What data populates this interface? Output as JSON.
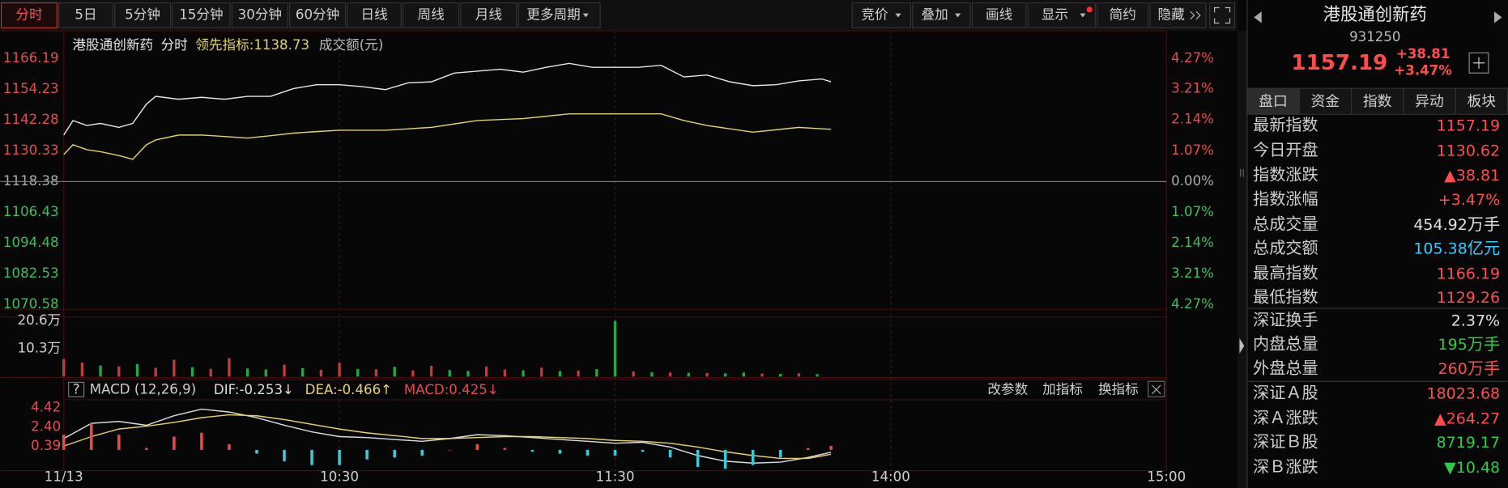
{
  "toolbar": {
    "periods": [
      "分时",
      "5日",
      "5分钟",
      "15分钟",
      "30分钟",
      "60分钟",
      "日线",
      "周线",
      "月线",
      "更多周期"
    ],
    "active": 0,
    "tools": [
      "竞价",
      "叠加",
      "画线",
      "显示",
      "简约",
      "隐藏"
    ]
  },
  "chart_data": [
    {
      "type": "line",
      "name": "港股通创新药",
      "mode": "分时",
      "indicator": {
        "label": "领先指标:",
        "value": 1138.73
      },
      "unit_note": "成交额(元)",
      "xlim": [
        0,
        240
      ],
      "x": [
        0,
        2,
        5,
        8,
        12,
        15,
        18,
        20,
        25,
        30,
        35,
        40,
        45,
        50,
        55,
        60,
        65,
        70,
        75,
        80,
        85,
        90,
        95,
        100,
        105,
        110,
        115,
        120,
        125,
        130,
        135,
        140,
        145,
        150,
        155,
        160,
        165,
        167
      ],
      "series": [
        {
          "name": "港股通创新药",
          "color": "#e6e6e6",
          "values": [
            1136.45,
            1142.1,
            1140.21,
            1140.97,
            1139.46,
            1140.97,
            1148.5,
            1151.51,
            1150.38,
            1151.13,
            1150.38,
            1151.51,
            1151.51,
            1154.52,
            1156.03,
            1156.03,
            1155.27,
            1154.14,
            1156.78,
            1157.16,
            1160.54,
            1161.3,
            1162.05,
            1160.92,
            1162.8,
            1164.31,
            1162.8,
            1162.8,
            1162.8,
            1163.56,
            1159.04,
            1159.79,
            1157.16,
            1155.65,
            1156.03,
            1157.53,
            1158.28,
            1157.19
          ]
        },
        {
          "name": "领先指标:",
          "color": "#e0d36a",
          "values": [
            1128.92,
            1132.69,
            1130.8,
            1130.0,
            1128.5,
            1127.04,
            1132.69,
            1134.57,
            1136.45,
            1136.45,
            1135.9,
            1135.32,
            1136.2,
            1137.2,
            1137.8,
            1138.33,
            1138.33,
            1138.33,
            1138.9,
            1139.46,
            1140.8,
            1142.1,
            1142.5,
            1142.85,
            1143.8,
            1144.73,
            1144.73,
            1144.73,
            1144.73,
            1144.73,
            1142.1,
            1140.21,
            1138.9,
            1137.58,
            1138.5,
            1139.46,
            1138.9,
            1138.73
          ]
        }
      ],
      "ylim": [
        1070.58,
        1166.19
      ],
      "yticks": [
        1166.19,
        1154.23,
        1142.28,
        1130.33,
        1118.38,
        1106.43,
        1094.48,
        1082.53,
        1070.58
      ],
      "y2lim": [
        -4.27,
        4.27
      ],
      "y2ticks": [
        {
          "value": 4.27,
          "label": "4.27%"
        },
        {
          "value": 3.21,
          "label": "3.21%"
        },
        {
          "value": 2.14,
          "label": "2.14%"
        },
        {
          "value": 1.07,
          "label": "1.07%"
        },
        {
          "value": 0,
          "label": "0.00%"
        },
        {
          "value": -1.07,
          "label": "1.07%"
        },
        {
          "value": -2.14,
          "label": "2.14%"
        },
        {
          "value": -3.21,
          "label": "3.21%"
        },
        {
          "value": -4.27,
          "label": "4.27%"
        }
      ],
      "up_color": "#e84a4a",
      "down_color": "#3bbf5b",
      "flat_color": "#aaaaaa"
    },
    {
      "type": "bar",
      "xlim": [
        0,
        240
      ],
      "x": [
        0,
        4,
        8,
        12,
        16,
        20,
        24,
        28,
        32,
        36,
        40,
        44,
        48,
        52,
        56,
        60,
        64,
        68,
        72,
        76,
        80,
        84,
        88,
        92,
        96,
        100,
        104,
        108,
        112,
        116,
        120,
        124,
        128,
        132,
        136,
        140,
        144,
        148,
        152,
        156,
        160,
        164
      ],
      "values": [
        6.5,
        5.2,
        4.1,
        3.8,
        4.6,
        3.2,
        6.2,
        3.4,
        2.9,
        6.8,
        3.0,
        2.6,
        4.4,
        3.1,
        2.5,
        5.1,
        2.8,
        2.7,
        3.6,
        2.3,
        4.0,
        2.4,
        2.1,
        3.7,
        2.6,
        2.3,
        3.3,
        2.0,
        2.2,
        2.8,
        20.6,
        1.9,
        1.6,
        1.5,
        1.4,
        1.3,
        1.2,
        1.5,
        1.1,
        1.0,
        1.2,
        0.9
      ],
      "up": [
        true,
        true,
        false,
        true,
        false,
        true,
        true,
        false,
        true,
        true,
        false,
        false,
        true,
        false,
        true,
        true,
        false,
        true,
        false,
        true,
        true,
        false,
        false,
        true,
        true,
        false,
        true,
        false,
        true,
        false,
        false,
        true,
        false,
        true,
        false,
        true,
        false,
        false,
        true,
        false,
        true,
        false
      ],
      "up_color": "#c23a3a",
      "down_color": "#22a84a",
      "ylim": [
        0,
        20.6
      ],
      "yticks": [
        {
          "value": 20.6,
          "label": "20.6万"
        },
        {
          "value": 10.3,
          "label": "10.3万"
        }
      ]
    },
    {
      "type": "macd",
      "help": "?",
      "title": "MACD (12,26,9)",
      "xlim": [
        0,
        240
      ],
      "xticks": [
        {
          "value": 0,
          "label": "11/13"
        },
        {
          "value": 60,
          "label": "10:30"
        },
        {
          "value": 120,
          "label": "11:30"
        },
        {
          "value": 180,
          "label": "14:00"
        },
        {
          "value": 240,
          "label": "15:00"
        }
      ],
      "x": [
        0,
        6,
        12,
        18,
        24,
        30,
        36,
        42,
        48,
        54,
        60,
        66,
        72,
        78,
        84,
        90,
        96,
        102,
        108,
        114,
        120,
        126,
        132,
        138,
        144,
        150,
        156,
        162,
        167
      ],
      "series": [
        {
          "name": "DIF:",
          "current": -0.253,
          "trend": "↓",
          "color": "#dddddd",
          "values": [
            1.2,
            2.8,
            3.0,
            2.6,
            3.6,
            4.3,
            4.0,
            3.4,
            2.6,
            1.9,
            1.4,
            1.3,
            1.1,
            0.9,
            1.2,
            1.6,
            1.5,
            1.3,
            1.1,
            0.9,
            0.7,
            0.8,
            0.3,
            -0.6,
            -1.2,
            -1.4,
            -1.3,
            -0.8,
            -0.253
          ]
        },
        {
          "name": "DEA:",
          "current": -0.466,
          "trend": "↑",
          "color": "#e6d36a",
          "values": [
            0.4,
            1.4,
            2.2,
            2.5,
            2.9,
            3.4,
            3.7,
            3.6,
            3.2,
            2.7,
            2.2,
            1.8,
            1.5,
            1.2,
            1.2,
            1.3,
            1.4,
            1.4,
            1.3,
            1.2,
            1.0,
            0.9,
            0.7,
            0.3,
            -0.2,
            -0.6,
            -0.9,
            -0.9,
            -0.466
          ]
        },
        {
          "name": "MACD:",
          "current": 0.425,
          "trend": "↓",
          "color": "#e84a4a",
          "type": "bar",
          "down_color": "#3cc8d8",
          "values": [
            1.6,
            2.8,
            1.6,
            0.2,
            1.4,
            1.8,
            0.6,
            -0.4,
            -1.2,
            -1.6,
            -1.6,
            -1.0,
            -0.8,
            -0.6,
            0.0,
            0.6,
            0.2,
            -0.2,
            -0.4,
            -0.6,
            -0.6,
            -0.2,
            -0.8,
            -1.8,
            -2.0,
            -1.6,
            -0.8,
            0.2,
            0.425
          ]
        }
      ],
      "ylim": [
        -2.2,
        4.9
      ],
      "yticks": [
        4.42,
        {
          "value": 2.4,
          "label": "2.40"
        },
        0.39
      ],
      "buttons": [
        "改参数",
        "加指标",
        "换指标"
      ]
    }
  ],
  "quote": {
    "name": "港股通创新药",
    "code": "931250",
    "price": "1157.19",
    "change": "+38.81",
    "change_pct": "+3.47%",
    "tabs": [
      "盘口",
      "资金",
      "指数",
      "异动",
      "板块"
    ],
    "groups": [
      [
        {
          "label": "最新指数",
          "value": "1157.19",
          "color": "#ff4d4d"
        },
        {
          "label": "今日开盘",
          "value": "1130.62",
          "color": "#ff4d4d"
        },
        {
          "label": "指数涨跌",
          "value": "▲38.81",
          "color": "#ff4d4d"
        },
        {
          "label": "指数涨幅",
          "value": "+3.47%",
          "color": "#ff4d4d"
        },
        {
          "label": "总成交量",
          "value": "454.92",
          "unit": "万手",
          "color": "#e0e0e0"
        },
        {
          "label": "总成交额",
          "value": "105.38",
          "unit": "亿元",
          "color": "#33ccff"
        },
        {
          "label": "最高指数",
          "value": "1166.19",
          "color": "#ff4d4d"
        },
        {
          "label": "最低指数",
          "value": "1129.26",
          "color": "#ff4d4d"
        }
      ],
      [
        {
          "label": "深证换手",
          "value": "2.37%",
          "color": "#e0e0e0"
        },
        {
          "label": "内盘总量",
          "value": "195",
          "unit": "万手",
          "color": "#2ecc40"
        },
        {
          "label": "外盘总量",
          "value": "260",
          "unit": "万手",
          "color": "#ff4d4d"
        }
      ],
      [
        {
          "label": "深证Ａ股",
          "value": "18023.68",
          "color": "#ff4d4d"
        },
        {
          "label": "深Ａ涨跌",
          "value": "▲264.27",
          "color": "#ff4d4d"
        },
        {
          "label": "深证Ｂ股",
          "value": "8719.17",
          "color": "#2ecc40"
        },
        {
          "label": "深Ｂ涨跌",
          "value": "▼10.48",
          "color": "#2ecc40"
        }
      ]
    ]
  }
}
